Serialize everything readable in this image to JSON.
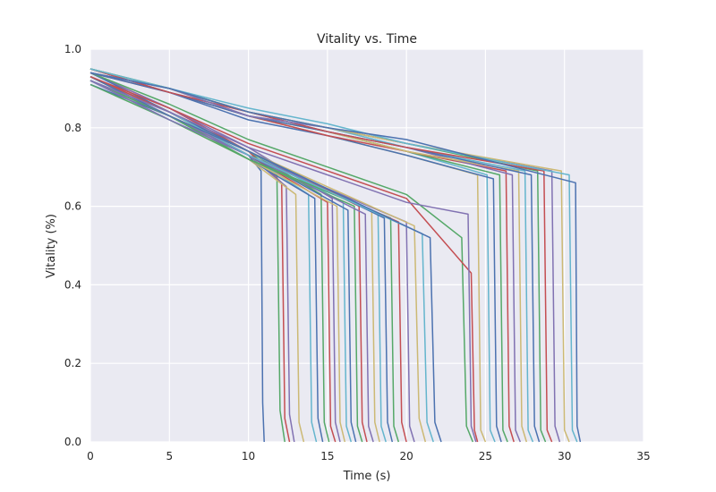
{
  "chart_data": {
    "type": "line",
    "title": "Vitality vs. Time",
    "xlabel": "Time (s)",
    "ylabel": "Vitality (%)",
    "xlim": [
      0,
      35
    ],
    "ylim": [
      0.0,
      1.0
    ],
    "x_ticks": [
      0,
      5,
      10,
      15,
      20,
      25,
      30,
      35
    ],
    "y_ticks": [
      0.0,
      0.2,
      0.4,
      0.6,
      0.8,
      1.0
    ],
    "x_tick_labels": [
      "0",
      "5",
      "10",
      "15",
      "20",
      "25",
      "30",
      "35"
    ],
    "y_tick_labels": [
      "0.0",
      "0.2",
      "0.4",
      "0.6",
      "0.8",
      "1.0"
    ],
    "grid": true,
    "background": "#EAEAF2",
    "palette": [
      "#4C72B0",
      "#55A868",
      "#C44E52",
      "#8172B2",
      "#CCB974",
      "#64B5CD"
    ],
    "series": [
      {
        "x": [
          0,
          5,
          10,
          10.8,
          10.9,
          11.0
        ],
        "values": [
          0.93,
          0.84,
          0.73,
          0.69,
          0.1,
          0.0
        ]
      },
      {
        "x": [
          0,
          5,
          10,
          11.8,
          12.0,
          12.3
        ],
        "values": [
          0.92,
          0.83,
          0.74,
          0.68,
          0.08,
          0.0
        ]
      },
      {
        "x": [
          0,
          5,
          10,
          12.1,
          12.3,
          12.6
        ],
        "values": [
          0.94,
          0.85,
          0.74,
          0.66,
          0.06,
          0.0
        ]
      },
      {
        "x": [
          0,
          5,
          10,
          12.4,
          12.6,
          12.9
        ],
        "values": [
          0.92,
          0.84,
          0.73,
          0.65,
          0.07,
          0.0
        ]
      },
      {
        "x": [
          0,
          5,
          10,
          13.0,
          13.2,
          13.5
        ],
        "values": [
          0.93,
          0.83,
          0.72,
          0.63,
          0.05,
          0.0
        ]
      },
      {
        "x": [
          0,
          5,
          10,
          13.8,
          14.0,
          14.3
        ],
        "values": [
          0.92,
          0.82,
          0.73,
          0.63,
          0.05,
          0.0
        ]
      },
      {
        "x": [
          0,
          5,
          10,
          14.2,
          14.4,
          14.7
        ],
        "values": [
          0.91,
          0.83,
          0.72,
          0.62,
          0.06,
          0.0
        ]
      },
      {
        "x": [
          0,
          5,
          10,
          14.6,
          14.8,
          15.1
        ],
        "values": [
          0.93,
          0.84,
          0.74,
          0.63,
          0.05,
          0.0
        ]
      },
      {
        "x": [
          0,
          5,
          10,
          15.0,
          15.2,
          15.5
        ],
        "values": [
          0.92,
          0.83,
          0.73,
          0.61,
          0.04,
          0.0
        ]
      },
      {
        "x": [
          0,
          5,
          10,
          15.3,
          15.5,
          15.8
        ],
        "values": [
          0.94,
          0.85,
          0.75,
          0.62,
          0.05,
          0.0
        ]
      },
      {
        "x": [
          0,
          5,
          10,
          15.6,
          15.8,
          16.1
        ],
        "values": [
          0.92,
          0.82,
          0.72,
          0.6,
          0.05,
          0.0
        ]
      },
      {
        "x": [
          0,
          5,
          10,
          16.0,
          16.2,
          16.5
        ],
        "values": [
          0.93,
          0.84,
          0.74,
          0.61,
          0.04,
          0.0
        ]
      },
      {
        "x": [
          0,
          5,
          10,
          16.3,
          16.5,
          16.8
        ],
        "values": [
          0.92,
          0.83,
          0.73,
          0.59,
          0.05,
          0.0
        ]
      },
      {
        "x": [
          0,
          5,
          10,
          16.7,
          16.9,
          17.2
        ],
        "values": [
          0.91,
          0.82,
          0.72,
          0.6,
          0.04,
          0.0
        ]
      },
      {
        "x": [
          0,
          5,
          10,
          17.0,
          17.2,
          17.5
        ],
        "values": [
          0.93,
          0.84,
          0.74,
          0.6,
          0.05,
          0.0
        ]
      },
      {
        "x": [
          0,
          5,
          10,
          17.4,
          17.6,
          17.9
        ],
        "values": [
          0.92,
          0.83,
          0.73,
          0.58,
          0.04,
          0.0
        ]
      },
      {
        "x": [
          0,
          5,
          10,
          17.8,
          18.0,
          18.3
        ],
        "values": [
          0.93,
          0.83,
          0.74,
          0.59,
          0.05,
          0.0
        ]
      },
      {
        "x": [
          0,
          5,
          10,
          18.2,
          18.4,
          18.7
        ],
        "values": [
          0.92,
          0.82,
          0.73,
          0.58,
          0.04,
          0.0
        ]
      },
      {
        "x": [
          0,
          5,
          10,
          18.6,
          18.8,
          19.1
        ],
        "values": [
          0.94,
          0.84,
          0.74,
          0.57,
          0.05,
          0.0
        ]
      },
      {
        "x": [
          0,
          5,
          10,
          19.0,
          19.2,
          19.5
        ],
        "values": [
          0.92,
          0.83,
          0.72,
          0.57,
          0.04,
          0.0
        ]
      },
      {
        "x": [
          0,
          5,
          10,
          19.5,
          19.7,
          20.0
        ],
        "values": [
          0.93,
          0.84,
          0.73,
          0.56,
          0.05,
          0.0
        ]
      },
      {
        "x": [
          0,
          5,
          10,
          20.0,
          20.2,
          20.5
        ],
        "values": [
          0.92,
          0.82,
          0.73,
          0.56,
          0.04,
          0.0
        ]
      },
      {
        "x": [
          0,
          5,
          10,
          20.5,
          20.8,
          21.2
        ],
        "values": [
          0.93,
          0.83,
          0.74,
          0.55,
          0.06,
          0.0
        ]
      },
      {
        "x": [
          0,
          5,
          10,
          21.0,
          21.3,
          21.7
        ],
        "values": [
          0.92,
          0.84,
          0.73,
          0.53,
          0.05,
          0.0
        ]
      },
      {
        "x": [
          0,
          5,
          10,
          21.5,
          21.8,
          22.2
        ],
        "values": [
          0.93,
          0.83,
          0.74,
          0.52,
          0.05,
          0.0
        ]
      },
      {
        "x": [
          0,
          5,
          10,
          15,
          20,
          23.5,
          23.8,
          24.2
        ],
        "values": [
          0.94,
          0.86,
          0.77,
          0.7,
          0.63,
          0.52,
          0.04,
          0.0
        ]
      },
      {
        "x": [
          0,
          5,
          10,
          15,
          20,
          24.1,
          24.3,
          24.5
        ],
        "values": [
          0.93,
          0.85,
          0.76,
          0.69,
          0.62,
          0.43,
          0.03,
          0.0
        ]
      },
      {
        "x": [
          0,
          5,
          10,
          15,
          20,
          23.9,
          24.1,
          24.4
        ],
        "values": [
          0.92,
          0.84,
          0.75,
          0.68,
          0.61,
          0.58,
          0.04,
          0.0
        ]
      },
      {
        "x": [
          0,
          5,
          10,
          15,
          20,
          24.5,
          24.7,
          25.0
        ],
        "values": [
          0.95,
          0.89,
          0.83,
          0.78,
          0.73,
          0.68,
          0.03,
          0.0
        ]
      },
      {
        "x": [
          0,
          5,
          10,
          15,
          20,
          25.1,
          25.3,
          25.6
        ],
        "values": [
          0.95,
          0.89,
          0.83,
          0.79,
          0.74,
          0.68,
          0.03,
          0.0
        ]
      },
      {
        "x": [
          0,
          5,
          10,
          15,
          20,
          25.5,
          25.7,
          26.0
        ],
        "values": [
          0.94,
          0.89,
          0.82,
          0.78,
          0.73,
          0.67,
          0.04,
          0.0
        ]
      },
      {
        "x": [
          0,
          5,
          10,
          15,
          20,
          25.9,
          26.1,
          26.4
        ],
        "values": [
          0.95,
          0.9,
          0.84,
          0.79,
          0.74,
          0.68,
          0.03,
          0.0
        ]
      },
      {
        "x": [
          0,
          5,
          10,
          15,
          20,
          26.3,
          26.5,
          26.8
        ],
        "values": [
          0.94,
          0.89,
          0.83,
          0.78,
          0.74,
          0.69,
          0.04,
          0.0
        ]
      },
      {
        "x": [
          0,
          5,
          10,
          15,
          20,
          26.7,
          26.9,
          27.2
        ],
        "values": [
          0.95,
          0.89,
          0.84,
          0.79,
          0.75,
          0.68,
          0.03,
          0.0
        ]
      },
      {
        "x": [
          0,
          5,
          10,
          15,
          20,
          27.1,
          27.3,
          27.6
        ],
        "values": [
          0.94,
          0.9,
          0.83,
          0.79,
          0.74,
          0.69,
          0.04,
          0.0
        ]
      },
      {
        "x": [
          0,
          5,
          10,
          15,
          20,
          27.5,
          27.7,
          28.0
        ],
        "values": [
          0.95,
          0.9,
          0.84,
          0.8,
          0.75,
          0.69,
          0.03,
          0.0
        ]
      },
      {
        "x": [
          0,
          5,
          10,
          15,
          20,
          27.9,
          28.1,
          28.4
        ],
        "values": [
          0.94,
          0.89,
          0.83,
          0.79,
          0.75,
          0.68,
          0.04,
          0.0
        ]
      },
      {
        "x": [
          0,
          5,
          10,
          15,
          20,
          28.3,
          28.5,
          28.8
        ],
        "values": [
          0.95,
          0.9,
          0.84,
          0.8,
          0.76,
          0.69,
          0.03,
          0.0
        ]
      },
      {
        "x": [
          0,
          5,
          10,
          15,
          20,
          28.7,
          28.9,
          29.2
        ],
        "values": [
          0.95,
          0.89,
          0.84,
          0.79,
          0.75,
          0.69,
          0.03,
          0.0
        ]
      },
      {
        "x": [
          0,
          5,
          10,
          15,
          20,
          29.2,
          29.4,
          29.7
        ],
        "values": [
          0.94,
          0.9,
          0.83,
          0.8,
          0.76,
          0.69,
          0.04,
          0.0
        ]
      },
      {
        "x": [
          0,
          5,
          10,
          15,
          20,
          29.8,
          30.0,
          30.3
        ],
        "values": [
          0.95,
          0.9,
          0.84,
          0.8,
          0.76,
          0.69,
          0.03,
          0.0
        ]
      },
      {
        "x": [
          0,
          5,
          10,
          15,
          20,
          30.3,
          30.5,
          30.8
        ],
        "values": [
          0.95,
          0.9,
          0.85,
          0.81,
          0.76,
          0.68,
          0.03,
          0.0
        ]
      },
      {
        "x": [
          0,
          5,
          10,
          15,
          20,
          30.7,
          30.8,
          31.0
        ],
        "values": [
          0.94,
          0.9,
          0.84,
          0.8,
          0.77,
          0.66,
          0.04,
          0.0
        ]
      }
    ]
  }
}
